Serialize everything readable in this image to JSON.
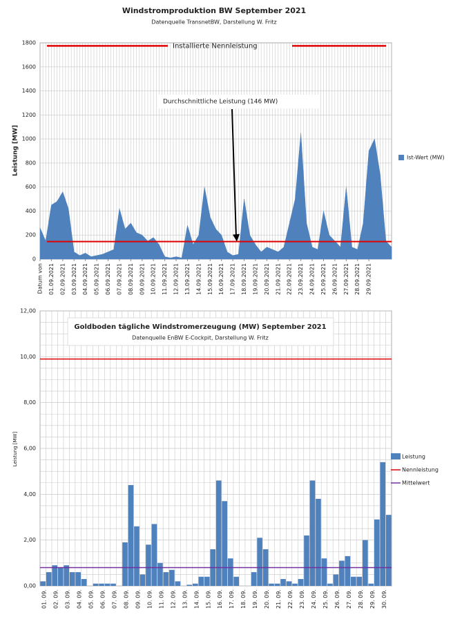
{
  "chart_data": [
    {
      "type": "area",
      "title": "Windstromproduktion BW September 2021",
      "subtitle": "Datenquelle TransnetBW, Darstellung W. Fritz",
      "y_label": "Leistung [MW]",
      "x": [
        0,
        0.5,
        1,
        1.5,
        2,
        2.5,
        3,
        3.5,
        4,
        4.5,
        5,
        5.5,
        6,
        6.5,
        7,
        7.5,
        8,
        8.5,
        9,
        9.5,
        10,
        10.5,
        11,
        11.5,
        12,
        12.5,
        13,
        13.5,
        14,
        14.5,
        15,
        15.5,
        16,
        16.5,
        17,
        17.5,
        18,
        18.5,
        19,
        19.5,
        20,
        20.5,
        21,
        21.5,
        22,
        22.5,
        23,
        23.5,
        24,
        24.5,
        25,
        25.5,
        26,
        26.5,
        27,
        27.5,
        28,
        28.5,
        29,
        29.5,
        30,
        30.5,
        31
      ],
      "xlim": [
        0,
        31
      ],
      "xticks": [
        {
          "value": 0,
          "label": "Datum von"
        },
        {
          "value": 1,
          "label": "01.09.2021"
        },
        {
          "value": 2,
          "label": "02.09.2021"
        },
        {
          "value": 3,
          "label": "03.09.2021"
        },
        {
          "value": 4,
          "label": "04.09.2021"
        },
        {
          "value": 5,
          "label": "05.09.2021"
        },
        {
          "value": 6,
          "label": "06.09.2021"
        },
        {
          "value": 7,
          "label": "07.09.2021"
        },
        {
          "value": 8,
          "label": "08.09.2021"
        },
        {
          "value": 9,
          "label": "09.09.2021"
        },
        {
          "value": 10,
          "label": "10.09.2021"
        },
        {
          "value": 11,
          "label": "11.09.2021"
        },
        {
          "value": 12,
          "label": "12.09.2021"
        },
        {
          "value": 13,
          "label": "13.09.2021"
        },
        {
          "value": 14,
          "label": "14.09.2021"
        },
        {
          "value": 15,
          "label": "15.09.2021"
        },
        {
          "value": 16,
          "label": "16.09.2021"
        },
        {
          "value": 17,
          "label": "17.09.2021"
        },
        {
          "value": 18,
          "label": "18.09.2021"
        },
        {
          "value": 19,
          "label": "19.09.2021"
        },
        {
          "value": 20,
          "label": "20.09.2021"
        },
        {
          "value": 21,
          "label": "21.09.2021"
        },
        {
          "value": 22,
          "label": "22.09.2021"
        },
        {
          "value": 23,
          "label": "23.09.2021"
        },
        {
          "value": 24,
          "label": "24.09.2021"
        },
        {
          "value": 25,
          "label": "25.09.2021"
        },
        {
          "value": 26,
          "label": "26.09.2021"
        },
        {
          "value": 27,
          "label": "27.09.2021"
        },
        {
          "value": 28,
          "label": "28.09.2021"
        },
        {
          "value": 29,
          "label": "29.09.2021"
        }
      ],
      "ylim": [
        0,
        1800
      ],
      "yticks": [
        0,
        200,
        400,
        600,
        800,
        1000,
        1200,
        1400,
        1600,
        1800
      ],
      "grid": true,
      "series": [
        {
          "name": "Ist-Wert (MW)",
          "color": "#4f81bd",
          "values": [
            260,
            150,
            450,
            480,
            560,
            420,
            60,
            30,
            50,
            20,
            30,
            40,
            60,
            80,
            420,
            250,
            300,
            220,
            200,
            150,
            180,
            120,
            20,
            10,
            20,
            10,
            280,
            120,
            200,
            600,
            350,
            250,
            200,
            60,
            30,
            40,
            500,
            200,
            120,
            60,
            100,
            80,
            60,
            100,
            300,
            500,
            1050,
            300,
            100,
            80,
            400,
            200,
            150,
            100,
            600,
            100,
            80,
            300,
            900,
            1000,
            700,
            150,
            100
          ]
        }
      ],
      "reference_lines": [
        {
          "label": "Installierte Nennleistung",
          "value": 1775,
          "color": "#e00000"
        },
        {
          "label": "Durchschnittliche Leistung (146 MW)",
          "value": 146,
          "color": "#e00000"
        }
      ]
    },
    {
      "type": "bar",
      "title": "Goldboden tägliche Windstromerzeugung (MW) September 2021",
      "subtitle": "Datenquelle EnBW E-Cockpit, Darstellung  W. Fritz",
      "y_label": "Leistung [MW]",
      "categories": [
        "01. 09.",
        null,
        "02. 09.",
        null,
        "03. 09.",
        null,
        "04. 09.",
        null,
        "05. 09.",
        null,
        "06. 09.",
        null,
        "07. 09.",
        null,
        "08. 09.",
        null,
        "09. 09.",
        null,
        "10. 09.",
        null,
        "11. 09.",
        null,
        "12. 09.",
        null,
        "13. 09.",
        null,
        "14. 09.",
        null,
        "15. 09.",
        null,
        "16. 09.",
        null,
        "17. 09.",
        null,
        "18. 09.",
        null,
        "19. 09.",
        null,
        "20. 09.",
        null,
        "21. 09.",
        null,
        "22. 09.",
        null,
        "23. 09.",
        null,
        "24. 09.",
        null,
        "25. 09.",
        null,
        "26. 09.",
        null,
        "27. 09.",
        null,
        "28. 09.",
        null,
        "29. 09.",
        null,
        "30. 09.",
        null
      ],
      "ylim": [
        0,
        12
      ],
      "yticks": [
        {
          "value": 0,
          "label": "0,00"
        },
        {
          "value": 2,
          "label": "2,00"
        },
        {
          "value": 4,
          "label": "4,00"
        },
        {
          "value": 6,
          "label": "6,00"
        },
        {
          "value": 8,
          "label": "8,00"
        },
        {
          "value": 10,
          "label": "10,00"
        },
        {
          "value": 12,
          "label": "12,00"
        }
      ],
      "grid": true,
      "series": [
        {
          "name": "Leistung",
          "color": "#4f81bd",
          "values": [
            0.2,
            0.6,
            0.9,
            0.8,
            0.9,
            0.6,
            0.6,
            0.3,
            0,
            0.1,
            0.1,
            0.1,
            0.1,
            0,
            1.9,
            4.4,
            2.6,
            0.5,
            1.8,
            2.7,
            1.0,
            0.6,
            0.7,
            0.2,
            0,
            0.05,
            0.1,
            0.4,
            0.4,
            1.6,
            4.6,
            3.7,
            1.2,
            0.4,
            0,
            0,
            0.6,
            2.1,
            1.6,
            0.1,
            0.1,
            0.3,
            0.2,
            0.1,
            0.3,
            2.2,
            4.6,
            3.8,
            1.2,
            0.1,
            0.5,
            1.1,
            1.3,
            0.4,
            0.4,
            2.0,
            0.1,
            2.9,
            5.4,
            3.1
          ]
        }
      ],
      "reference_lines": [
        {
          "name": "Nennleistung",
          "value": 9.9,
          "color": "#e00000"
        },
        {
          "name": "Mittelwert",
          "value": 0.8,
          "color": "#7030a0"
        }
      ]
    }
  ]
}
